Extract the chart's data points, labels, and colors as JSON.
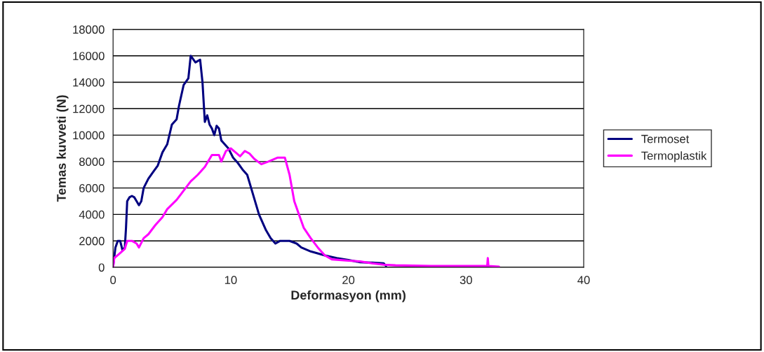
{
  "chart_data": {
    "type": "line",
    "xlabel": "Deformasyon (mm)",
    "ylabel": "Temas kuvveti (N)",
    "xlim": [
      0,
      40
    ],
    "xticks": [
      0,
      10,
      20,
      30,
      40
    ],
    "ylim": [
      0,
      18000
    ],
    "yticks": [
      0,
      2000,
      4000,
      6000,
      8000,
      10000,
      12000,
      14000,
      16000,
      18000
    ],
    "grid": "y",
    "legend": "right",
    "marker": "none",
    "line_style": "solid",
    "series": [
      {
        "name": "Termoset",
        "color": "#000080",
        "x": [
          0,
          0.2,
          0.4,
          0.6,
          0.8,
          1.0,
          1.1,
          1.2,
          1.4,
          1.6,
          1.8,
          2.0,
          2.2,
          2.4,
          2.6,
          3.0,
          3.4,
          3.8,
          4.2,
          4.6,
          5.0,
          5.4,
          5.6,
          6.0,
          6.4,
          6.6,
          7.0,
          7.4,
          7.6,
          7.8,
          8.0,
          8.2,
          8.4,
          8.6,
          8.8,
          9.0,
          9.2,
          9.4,
          9.8,
          10.2,
          10.6,
          11.0,
          11.4,
          11.8,
          12.4,
          13.0,
          13.4,
          13.8,
          14.2,
          15.0,
          15.6,
          16.0,
          16.8,
          18,
          19,
          20,
          21,
          22,
          23,
          23.2
        ],
        "values": [
          0,
          1500,
          2000,
          2000,
          1300,
          1500,
          3000,
          5000,
          5300,
          5400,
          5300,
          5000,
          4700,
          5000,
          6000,
          6700,
          7200,
          7700,
          8700,
          9300,
          10800,
          11200,
          12200,
          13800,
          14300,
          16000,
          15500,
          15700,
          14000,
          11000,
          11500,
          10800,
          10500,
          10000,
          10700,
          10500,
          9600,
          9400,
          9000,
          8300,
          7900,
          7400,
          7000,
          5800,
          4000,
          2800,
          2200,
          1800,
          2000,
          2000,
          1800,
          1500,
          1200,
          900,
          700,
          550,
          380,
          350,
          300,
          100
        ]
      },
      {
        "name": "Termoplastik",
        "color": "#ff00ff",
        "x": [
          0,
          0.1,
          0.5,
          1.0,
          1.2,
          1.6,
          2.0,
          2.2,
          2.6,
          3.0,
          3.6,
          4.2,
          4.6,
          5.4,
          6.0,
          6.6,
          7.2,
          7.8,
          8.4,
          9.0,
          9.2,
          9.6,
          10.0,
          10.4,
          10.8,
          11.2,
          11.6,
          12.0,
          12.6,
          13.2,
          14.0,
          14.6,
          15.0,
          15.4,
          15.8,
          16.2,
          16.8,
          17.4,
          18.0,
          18.6,
          20,
          21,
          22,
          23,
          24,
          27,
          31.8,
          31.85,
          31.9,
          32.8
        ],
        "values": [
          0,
          700,
          1000,
          1400,
          2000,
          2000,
          1800,
          1500,
          2200,
          2500,
          3200,
          3800,
          4400,
          5100,
          5800,
          6500,
          7000,
          7600,
          8500,
          8500,
          8000,
          8800,
          9000,
          8700,
          8400,
          8800,
          8600,
          8200,
          7800,
          8000,
          8300,
          8300,
          7000,
          5000,
          4000,
          3000,
          2200,
          1500,
          900,
          600,
          500,
          450,
          300,
          200,
          150,
          100,
          100,
          700,
          100,
          50
        ]
      }
    ]
  }
}
